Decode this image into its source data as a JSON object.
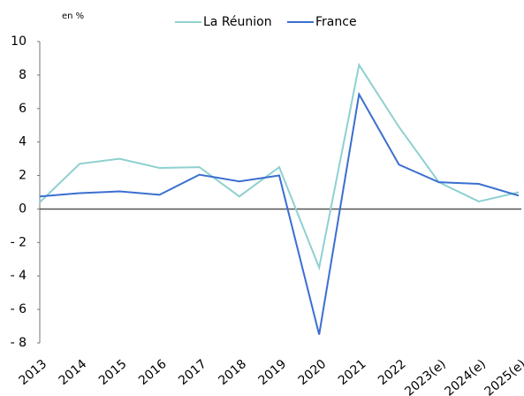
{
  "chart_data": {
    "type": "line",
    "unit_label": "en %",
    "categories": [
      "2013",
      "2014",
      "2015",
      "2016",
      "2017",
      "2018",
      "2019",
      "2020",
      "2021",
      "2022",
      "2023(e)",
      "2024(e)",
      "2025(e)"
    ],
    "series": [
      {
        "name": "La Réunion",
        "color": "#8fd0d0",
        "values": [
          0.4,
          2.7,
          3.0,
          2.45,
          2.5,
          0.75,
          2.5,
          -3.5,
          8.6,
          4.9,
          1.6,
          0.45,
          1.0
        ]
      },
      {
        "name": "France",
        "color": "#3a6fd0",
        "values": [
          0.75,
          0.95,
          1.05,
          0.85,
          2.05,
          1.65,
          2.0,
          -7.5,
          6.85,
          2.65,
          1.6,
          1.5,
          0.8
        ]
      }
    ],
    "ylim": [
      -8,
      10
    ],
    "yticks": [
      {
        "value": -8,
        "label": "- 8"
      },
      {
        "value": -6,
        "label": "- 6"
      },
      {
        "value": -4,
        "label": "- 4"
      },
      {
        "value": -2,
        "label": "- 2"
      },
      0,
      2,
      4,
      6,
      8,
      10
    ],
    "grid": false,
    "legend": "top"
  }
}
